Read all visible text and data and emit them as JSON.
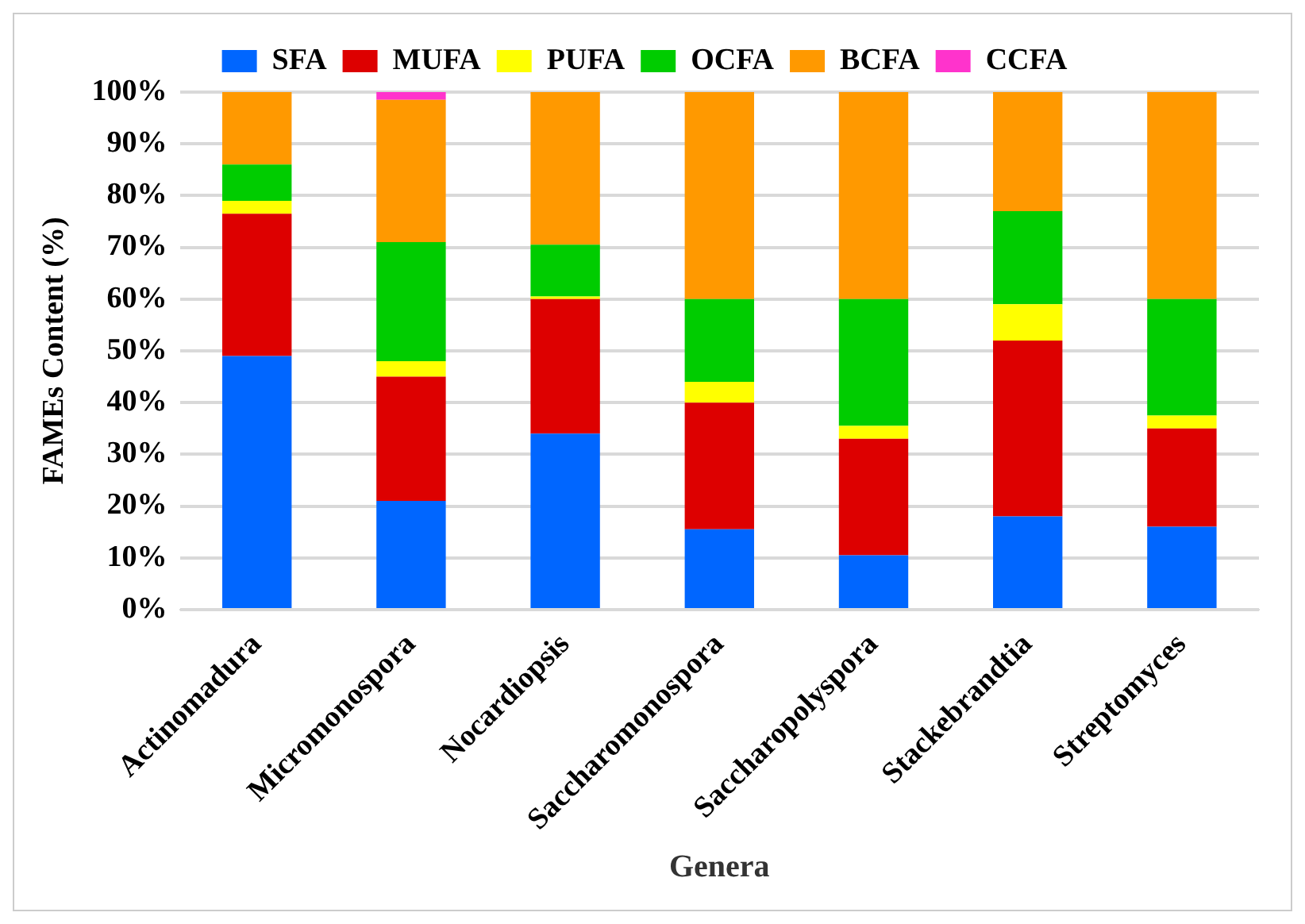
{
  "chart_data": {
    "type": "bar",
    "stacked": true,
    "xlabel": "Genera",
    "ylabel": "FAMEs Content (%)",
    "categories": [
      "Actinomadura",
      "Micromonospora",
      "Nocardiopsis",
      "Saccharomonospora",
      "Saccharopolyspora",
      "Stackebrandtia",
      "Streptomyces"
    ],
    "series": [
      {
        "name": "SFA",
        "color": "#0066ff",
        "values": [
          49,
          21,
          34,
          15.5,
          10.5,
          18,
          16
        ]
      },
      {
        "name": "MUFA",
        "color": "#dd0000",
        "values": [
          27.5,
          24,
          26,
          24.5,
          22.5,
          34,
          19
        ]
      },
      {
        "name": "PUFA",
        "color": "#ffff00",
        "values": [
          2.5,
          3,
          0.5,
          4,
          2.5,
          7,
          2.5
        ]
      },
      {
        "name": "OCFA",
        "color": "#00cc00",
        "values": [
          7,
          23,
          10,
          16,
          24.5,
          18,
          22.5
        ]
      },
      {
        "name": "BCFA",
        "color": "#ff9900",
        "values": [
          14,
          27.5,
          29.5,
          40,
          40,
          23,
          40
        ]
      },
      {
        "name": "CCFA",
        "color": "#ff33cc",
        "values": [
          0,
          1.5,
          0,
          0,
          0,
          0,
          0
        ]
      }
    ],
    "ylim": [
      0,
      100
    ],
    "yticks": [
      {
        "value": 0,
        "label": "0%"
      },
      {
        "value": 10,
        "label": "10%"
      },
      {
        "value": 20,
        "label": "20%"
      },
      {
        "value": 30,
        "label": "30%"
      },
      {
        "value": 40,
        "label": "40%"
      },
      {
        "value": 50,
        "label": "50%"
      },
      {
        "value": 60,
        "label": "60%"
      },
      {
        "value": 70,
        "label": "70%"
      },
      {
        "value": 80,
        "label": "80%"
      },
      {
        "value": 90,
        "label": "90%"
      },
      {
        "value": 100,
        "label": "100%"
      }
    ],
    "grid": "y",
    "legend": "top"
  }
}
